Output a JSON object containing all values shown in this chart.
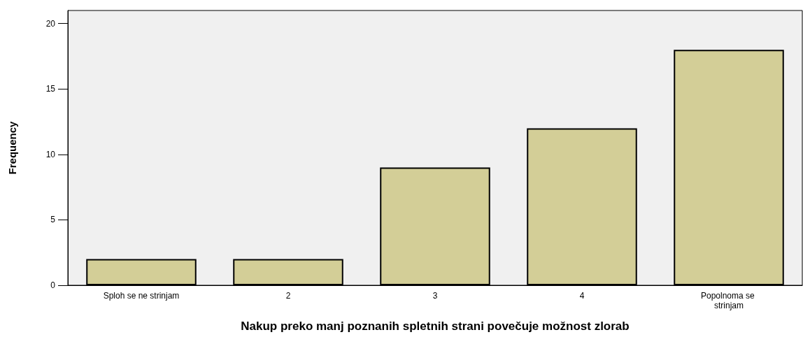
{
  "chart_data": {
    "type": "bar",
    "xlabel": "Nakup preko manj poznanih spletnih strani povečuje možnost zlorab",
    "ylabel": "Frequency",
    "categories": [
      "Sploh se ne strinjam",
      "2",
      "3",
      "4",
      "Popolnoma se strinjam"
    ],
    "values": [
      2,
      2,
      9,
      12,
      18
    ],
    "color": "#d3ce97",
    "ylim": [
      0,
      21
    ],
    "yticks": [
      0,
      5,
      10,
      15,
      20
    ],
    "grid": false
  }
}
